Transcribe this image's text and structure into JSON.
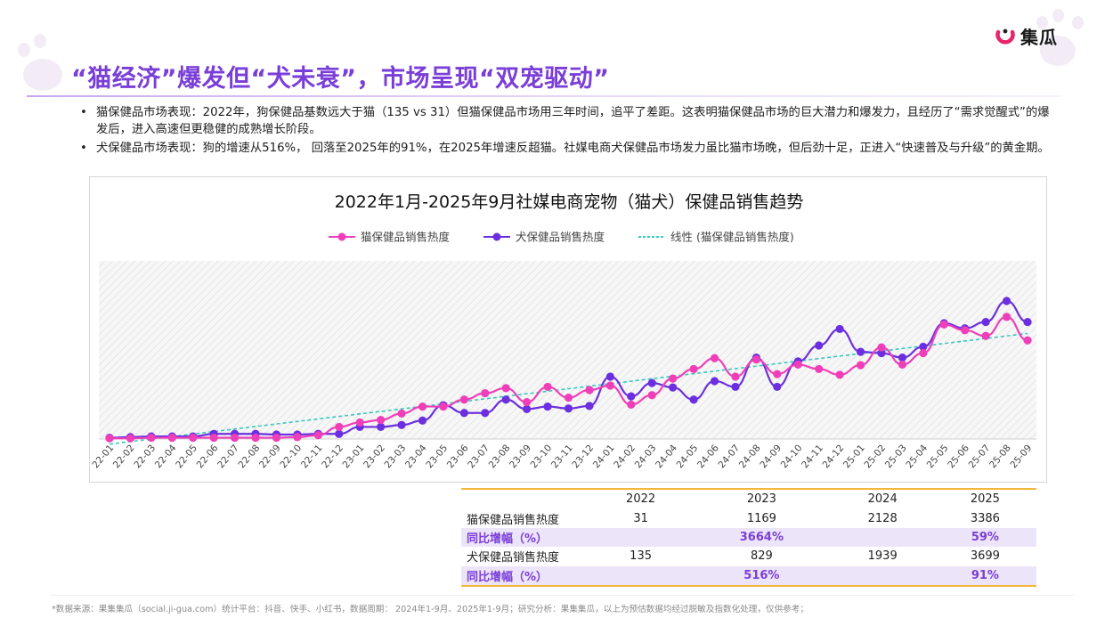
{
  "brand": {
    "name": "集瓜"
  },
  "page": {
    "title": "“猫经济”爆发但“犬未衰”，市场呈现“双宠驱动”",
    "bullets": [
      "猫保健品市场表现：2022年，狗保健品基数远大于猫（135 vs 31）但猫保健品市场用三年时间，追平了差距。这表明猫保健品市场的巨大潜力和爆发力，且经历了“需求觉醒式”的爆发后，进入高速但更稳健的成熟增长阶段。",
      "犬保健品市场表现：狗的增速从516%，  回落至2025年的91%，在2025年增速反超猫。社媒电商犬保健品市场发力虽比猫市场晚，但后劲十足，正进入“快速普及与升级”的黄金期。"
    ],
    "footnote": "*数据来源：果集集瓜（social.ji-gua.com）统计平台：抖音、快手、小红书，数据周期： 2024年1-9月、2025年1-9月；研究分析：果集集瓜，以上为预估数据均经过脱敏及指数化处理，仅供参考；"
  },
  "colors": {
    "cat": "#ef3fb8",
    "dog": "#6c2fe0",
    "trend": "#36c9bd",
    "title": "#7a3ed8",
    "table_border": "#f2b638",
    "yoy_bg": "#ece4f9"
  },
  "chart_data": {
    "type": "line",
    "title": "2022年1月-2025年9月社媒电商宠物（猫犬）保健品销售趋势",
    "legend_position": "top-center",
    "grid": false,
    "background": "diagonal-hatch",
    "ylim": [
      0,
      420
    ],
    "x": [
      "22-01",
      "22-02",
      "22-03",
      "22-04",
      "22-05",
      "22-06",
      "22-07",
      "22-08",
      "22-09",
      "22-10",
      "22-11",
      "22-12",
      "23-01",
      "23-02",
      "23-03",
      "23-04",
      "23-05",
      "23-06",
      "23-07",
      "23-08",
      "23-09",
      "23-10",
      "23-11",
      "23-12",
      "24-01",
      "24-02",
      "24-03",
      "24-04",
      "24-05",
      "24-06",
      "24-07",
      "24-08",
      "24-09",
      "24-10",
      "24-11",
      "24-12",
      "25-01",
      "25-02",
      "25-03",
      "25-04",
      "25-05",
      "25-06",
      "25-07",
      "25-08",
      "25-09"
    ],
    "series": [
      {
        "name": "猫保健品销售热度",
        "values": [
          1,
          1,
          2,
          2,
          2,
          2,
          2,
          2,
          2,
          3,
          6,
          19,
          26,
          30,
          40,
          51,
          51,
          62,
          72,
          80,
          58,
          82,
          65,
          77,
          84,
          54,
          69,
          95,
          110,
          127,
          98,
          125,
          102,
          117,
          110,
          101,
          116,
          144,
          117,
          135,
          180,
          171,
          162,
          192,
          155
        ]
      },
      {
        "name": "犬保健品销售热度",
        "values": [
          2,
          3,
          4,
          4,
          4,
          8,
          8,
          8,
          7,
          7,
          8,
          8,
          19,
          19,
          22,
          29,
          53,
          41,
          41,
          62,
          47,
          51,
          48,
          52,
          98,
          67,
          88,
          81,
          62,
          91,
          82,
          128,
          82,
          122,
          147,
          173,
          137,
          135,
          128,
          145,
          182,
          174,
          184,
          217,
          184
        ]
      }
    ],
    "trendline": {
      "name": "线性 (猫保健品销售热度)",
      "start": -8,
      "end": 166
    }
  },
  "table": {
    "headers": [
      "",
      "2022",
      "2023",
      "2024",
      "2025"
    ],
    "rows": [
      {
        "label": "猫保健品销售热度",
        "values": [
          "31",
          "1169",
          "2128",
          "3386"
        ],
        "highlight": false
      },
      {
        "label": "同比增幅（%）",
        "values": [
          "",
          "3664%",
          "",
          "59%"
        ],
        "highlight": true
      },
      {
        "label": "犬保健品销售热度",
        "values": [
          "135",
          "829",
          "1939",
          "3699"
        ],
        "highlight": false
      },
      {
        "label": "同比增幅（%）",
        "values": [
          "",
          "516%",
          "",
          "91%"
        ],
        "highlight": true
      }
    ]
  }
}
